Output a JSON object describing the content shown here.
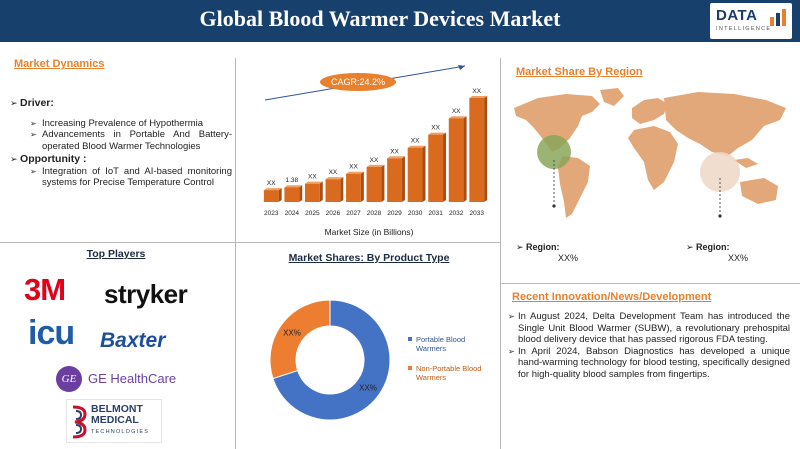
{
  "header": {
    "title": "Global Blood Warmer Devices Market",
    "logo_main": "DATA",
    "logo_sub": "INTELLIGENCE"
  },
  "market_dynamics": {
    "title": "Market Dynamics",
    "driver_label": "Driver:",
    "drivers": [
      "Increasing Prevalence of Hypothermia",
      "Advancements in Portable And Battery-operated Blood Warmer Technologies"
    ],
    "opportunity_label": "Opportunity :",
    "opportunities": [
      "Integration of IoT and AI-based monitoring systems for Precise Temperature Control"
    ]
  },
  "market_size_chart": {
    "cagr": "CAGR:24.2%",
    "xlabel": "Market Size (in Billions)",
    "bar_color": "#d96a1e"
  },
  "product_type": {
    "title": "Market Shares: By Product Type",
    "label_large": "XX%",
    "label_small": "XX%"
  },
  "top_players": {
    "title": "Top Players",
    "logos": [
      "3M",
      "stryker",
      "icu",
      "Baxter",
      "GE",
      "GE HealthCare",
      "BELMONT MEDICAL",
      "TECHNOLOGIES"
    ]
  },
  "region": {
    "title": "Market Share By Region",
    "left_label": "Region:",
    "left_value": "XX%",
    "right_label": "Region:",
    "right_value": "XX%"
  },
  "news": {
    "title": "Recent Innovation/News/Development",
    "items": [
      "In August 2024, Delta Development Team has introduced the Single Unit Blood Warmer (SUBW), a revolutionary prehospital blood delivery device that has passed rigorous FDA testing.",
      "In April 2024, Babson Diagnostics has developed a unique hand-warming technology for blood testing, specifically designed for high-quality blood samples from fingertips."
    ]
  },
  "chart_data": [
    {
      "type": "bar",
      "categories": [
        "2023",
        "2024",
        "2025",
        "2026",
        "2027",
        "2028",
        "2029",
        "2030",
        "2031",
        "2032",
        "2033"
      ],
      "data_labels": [
        "XX",
        "1.38",
        "XX",
        "XX",
        "XX",
        "XX",
        "XX",
        "XX",
        "XX",
        "XX",
        "XX"
      ],
      "values": [
        1.11,
        1.38,
        1.71,
        2.13,
        2.64,
        3.28,
        4.08,
        5.07,
        6.29,
        7.82,
        9.71
      ],
      "xlabel": "Market Size (in Billions)",
      "annotation": "CAGR:24.2%"
    },
    {
      "type": "pie",
      "title": "Market Shares: By Product Type",
      "categories": [
        "Portable Blood Warmers",
        "Non-Portable Blood Warmers"
      ],
      "values": [
        70,
        30
      ],
      "colors": [
        "#4472c4",
        "#ed7d31"
      ],
      "data_labels": [
        "XX%",
        "XX%"
      ],
      "legend": "right"
    }
  ]
}
